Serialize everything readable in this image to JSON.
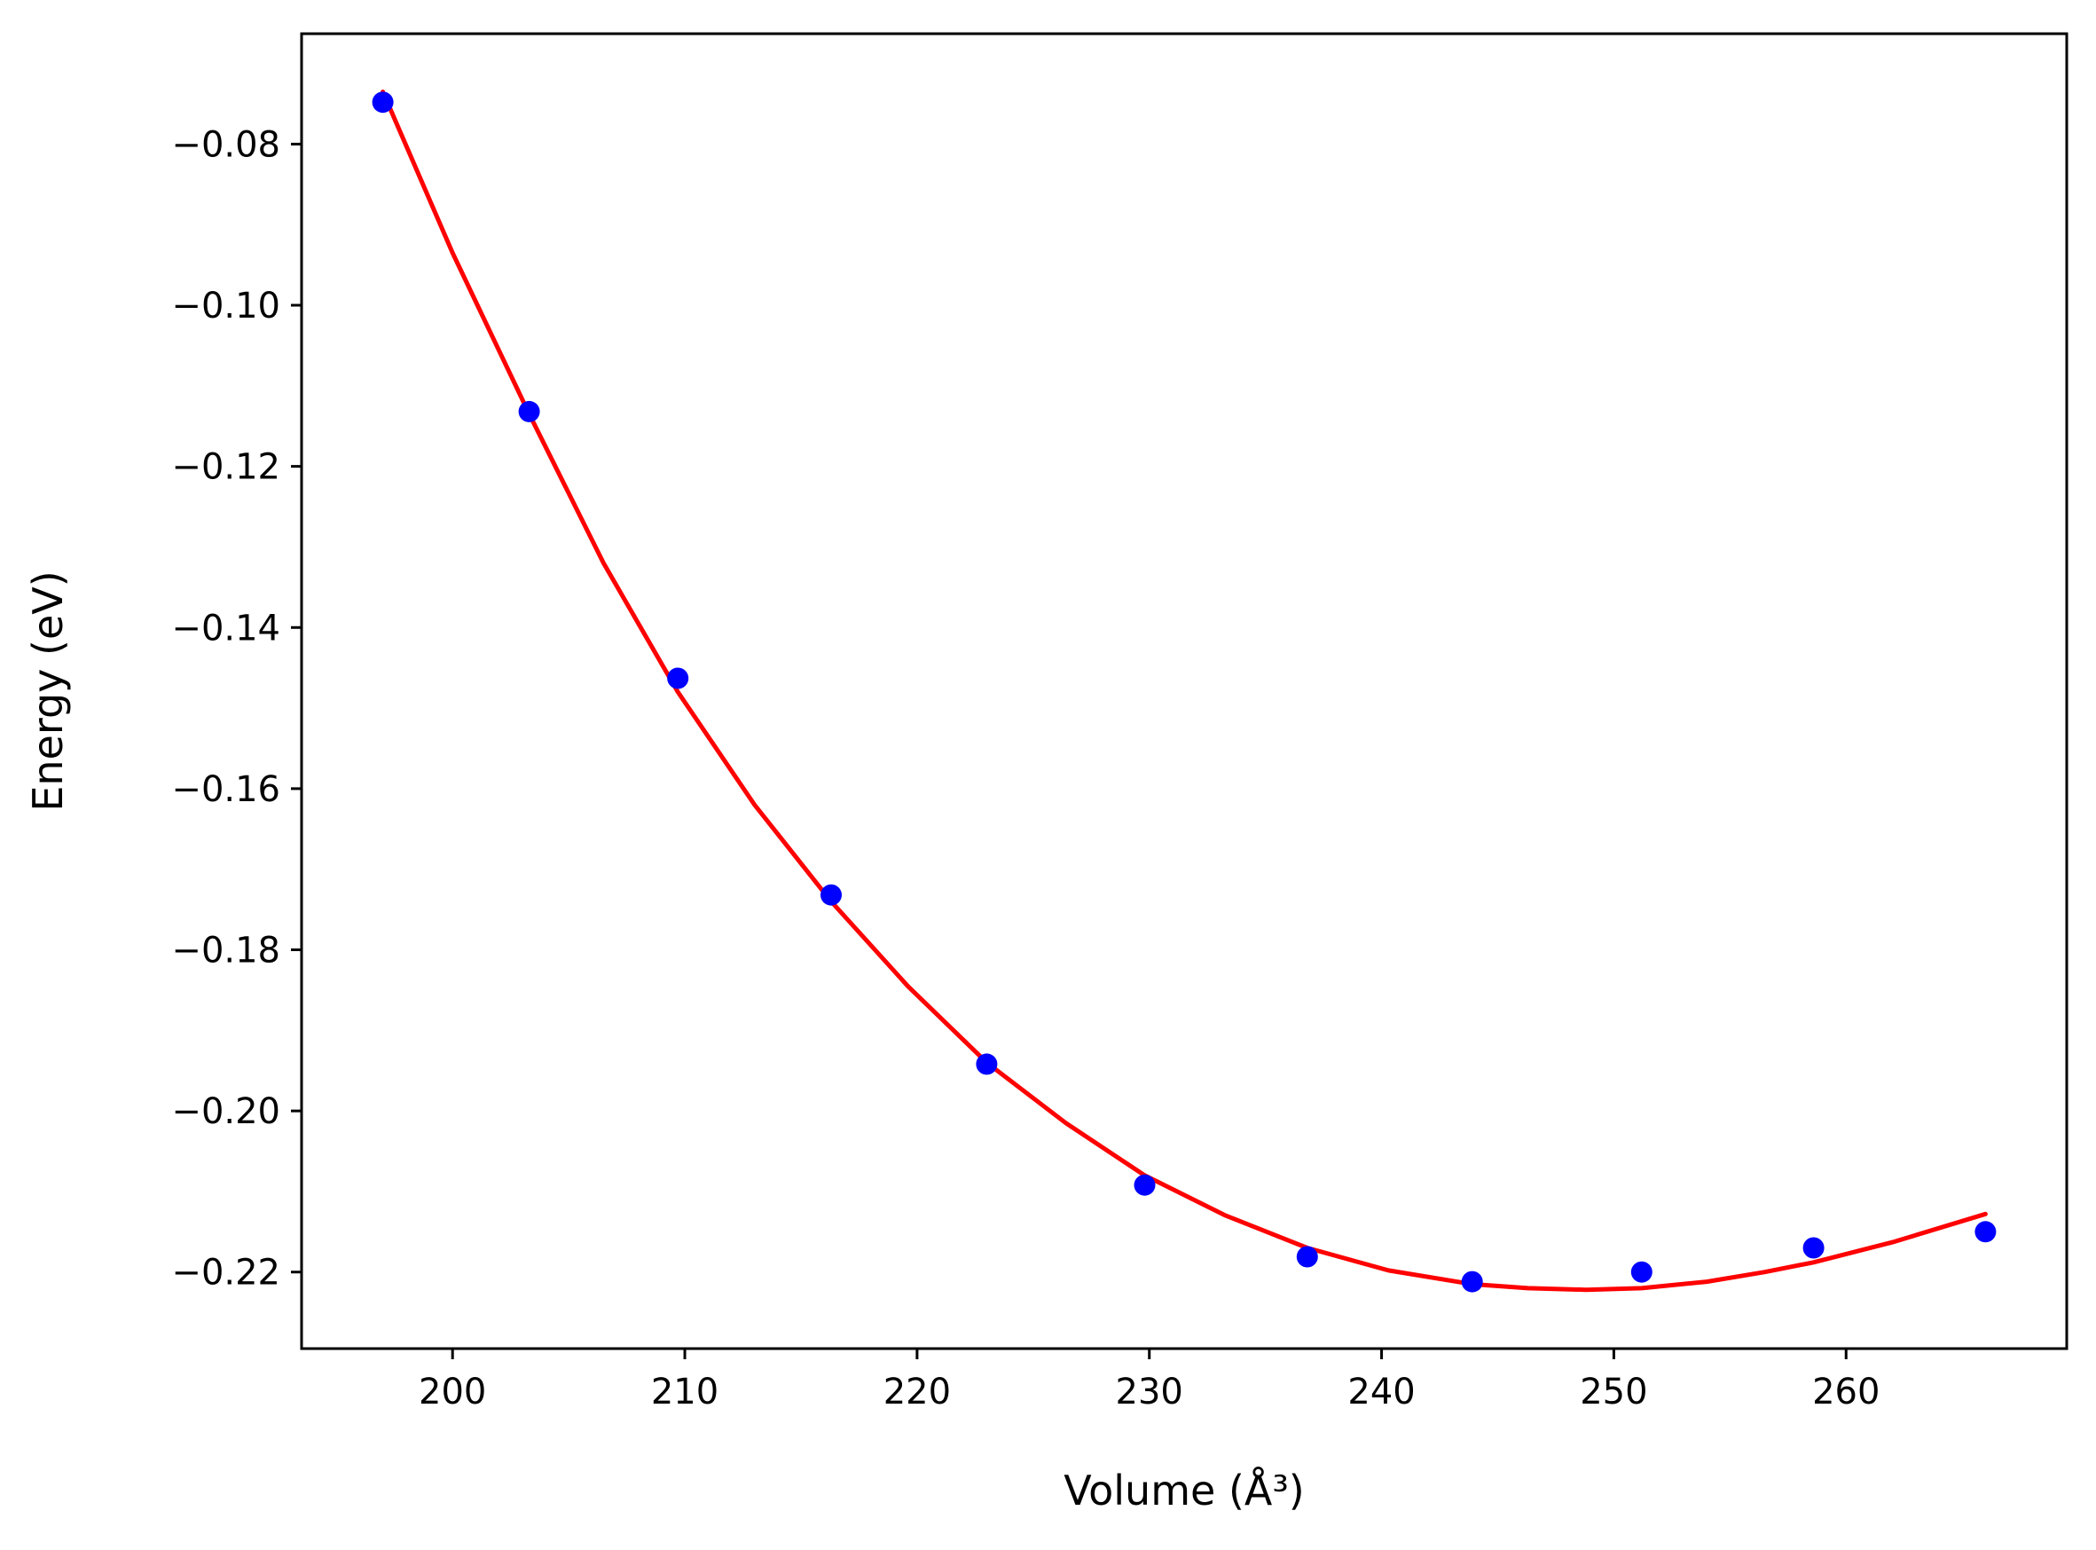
{
  "chart_data": {
    "type": "scatter",
    "title": "",
    "xlabel": "Volume (Å³)",
    "ylabel": "Energy (eV)",
    "xlim": [
      193.5,
      269.5
    ],
    "ylim": [
      -0.2295,
      -0.0663
    ],
    "xticks": [
      200,
      210,
      220,
      230,
      240,
      250,
      260
    ],
    "xtick_labels": [
      "200",
      "210",
      "220",
      "230",
      "240",
      "250",
      "260"
    ],
    "yticks": [
      -0.08,
      -0.1,
      -0.12,
      -0.14,
      -0.16,
      -0.18,
      -0.2,
      -0.22
    ],
    "ytick_labels": [
      "−0.08",
      "−0.10",
      "−0.12",
      "−0.14",
      "−0.16",
      "−0.18",
      "−0.20",
      "−0.22"
    ],
    "grid": false,
    "series": [
      {
        "kind": "points",
        "color": "#0000ff",
        "x": [
          197.0,
          203.3,
          209.7,
          216.3,
          223.0,
          229.8,
          236.8,
          243.9,
          251.2,
          258.6,
          266.0
        ],
        "y": [
          -0.0748,
          -0.1132,
          -0.1463,
          -0.1732,
          -0.1942,
          -0.2092,
          -0.2181,
          -0.2212,
          -0.22,
          -0.217,
          -0.215
        ]
      },
      {
        "kind": "fit-line",
        "color": "#ff0000",
        "x": [
          197.0,
          200.0,
          203.3,
          206.5,
          209.7,
          213.0,
          216.3,
          219.6,
          223.0,
          226.4,
          229.8,
          233.3,
          236.8,
          240.3,
          243.9,
          246.3,
          248.8,
          251.2,
          254.0,
          256.5,
          258.6,
          262.0,
          266.0
        ],
        "y": [
          -0.0735,
          -0.0935,
          -0.1135,
          -0.132,
          -0.148,
          -0.162,
          -0.174,
          -0.1845,
          -0.194,
          -0.2015,
          -0.208,
          -0.213,
          -0.217,
          -0.2198,
          -0.2215,
          -0.222,
          -0.2222,
          -0.222,
          -0.2212,
          -0.22,
          -0.2188,
          -0.2163,
          -0.2128
        ]
      }
    ]
  }
}
